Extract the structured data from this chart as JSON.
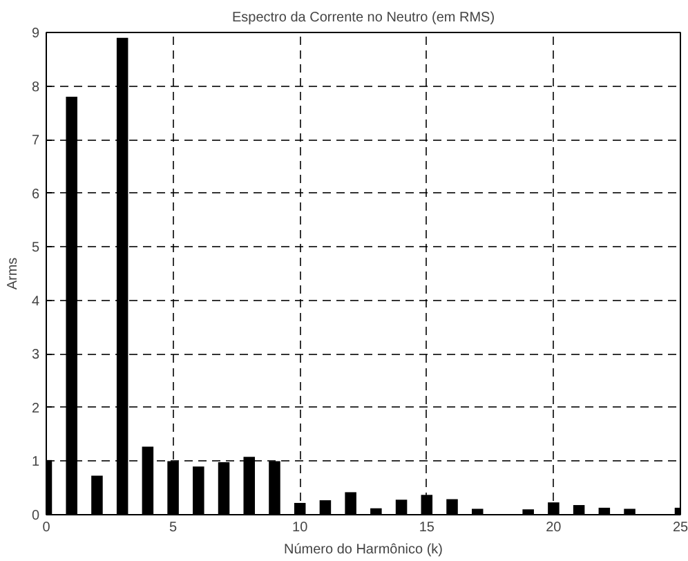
{
  "chart_data": {
    "type": "bar",
    "title": "Espectro da Corrente no Neutro (em RMS)",
    "xlabel": "Número do Harmônico (k)",
    "ylabel": "Arms",
    "x": [
      0,
      1,
      2,
      3,
      4,
      5,
      6,
      7,
      8,
      9,
      10,
      11,
      12,
      13,
      14,
      15,
      16,
      17,
      18,
      19,
      20,
      21,
      22,
      23,
      24,
      25
    ],
    "values": [
      1.02,
      7.8,
      0.73,
      8.9,
      1.27,
      1.0,
      0.9,
      0.98,
      1.08,
      1.0,
      0.22,
      0.27,
      0.42,
      0.12,
      0.28,
      0.37,
      0.29,
      0.11,
      0,
      0.1,
      0.23,
      0.18,
      0.13,
      0.11,
      0,
      0.13
    ],
    "color": "#000000",
    "xlim": [
      0,
      25
    ],
    "xticks": [
      0,
      5,
      10,
      15,
      20,
      25
    ],
    "ylim": [
      0,
      9
    ],
    "yticks": [
      0,
      1,
      2,
      3,
      4,
      5,
      6,
      7,
      8,
      9
    ],
    "grid": true
  }
}
